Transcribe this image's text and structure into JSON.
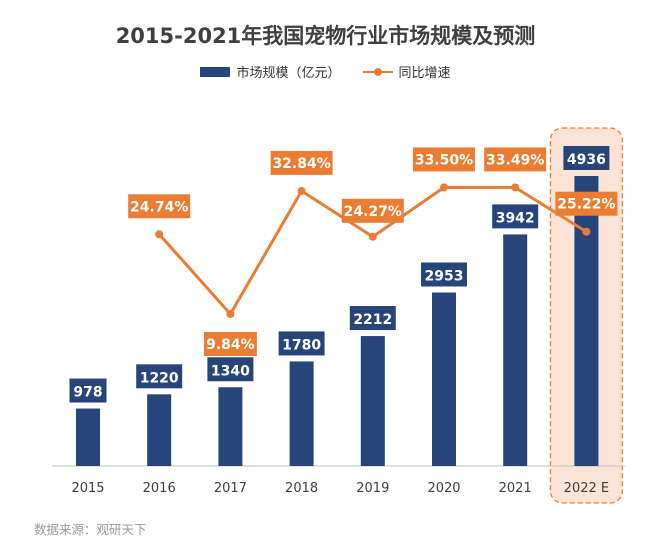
{
  "chart_data": {
    "type": "bar",
    "title": "2015-2021年我国宠物行业市场规模及预测",
    "categories": [
      "2015",
      "2016",
      "2017",
      "2018",
      "2019",
      "2020",
      "2021",
      "2022 E"
    ],
    "series": [
      {
        "name": "市场规模（亿元）",
        "type": "bar",
        "color": "#27457a",
        "values": [
          978,
          1220,
          1340,
          1780,
          2212,
          2953,
          3942,
          4936
        ],
        "value_labels": [
          "978",
          "1220",
          "1340",
          "1780",
          "2212",
          "2953",
          "3942",
          "4936"
        ]
      },
      {
        "name": "同比增速",
        "type": "line",
        "color": "#ea7d33",
        "values": [
          null,
          24.74,
          9.84,
          32.84,
          24.27,
          33.5,
          33.49,
          25.22
        ],
        "value_labels": [
          "",
          "24.74%",
          "9.84%",
          "32.84%",
          "24.27%",
          "33.50%",
          "33.49%",
          "25.22%"
        ]
      }
    ],
    "forecast_category": "2022 E",
    "forecast_highlight_color": "#fbe4d5",
    "legend_position": "top-center",
    "grid": false
  },
  "source": "数据来源：观研天下"
}
